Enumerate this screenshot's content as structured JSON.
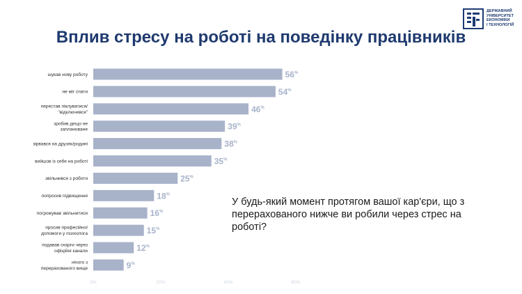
{
  "header": {
    "title": "Вплив стресу на роботі на поведінку працівників",
    "logo_lines": [
      "ДЕРЖАВНИЙ",
      "УНІВЕРСИТЕТ",
      "ЕКОНОМІКИ",
      "І ТЕХНОЛОГІЙ"
    ]
  },
  "question": "У будь-який момент протягом вашої кар'єри, що з перерахованого нижче ви робили через стрес на роботі?",
  "colors": {
    "bar": "#a8b3c9",
    "value": "#a8b3c9",
    "title": "#1f3a6e",
    "axis_tick": "#cfd5e0"
  },
  "chart_data": {
    "type": "bar",
    "orientation": "horizontal",
    "value_suffix": "%",
    "categories": [
      [
        "шукав нову роботу"
      ],
      [
        "не міг спати"
      ],
      [
        "перестав піклуватися/",
        "\"відключився\""
      ],
      [
        "зробив дещо не",
        "заплановане"
      ],
      [
        "зірвався на друзях/родині"
      ],
      [
        "вийшов із себе на роботі"
      ],
      [
        "звільнився з роботи"
      ],
      [
        "попросив підвищення"
      ],
      [
        "погрожував звільнитися"
      ],
      [
        "просив професійної",
        "допомоги у психолога"
      ],
      [
        "подавав скарги через",
        "офіційні канали"
      ],
      [
        "нічого з",
        "перерахованого вище"
      ]
    ],
    "values": [
      56,
      54,
      46,
      39,
      38,
      35,
      25,
      18,
      16,
      15,
      12,
      9
    ],
    "xlim": [
      0,
      60
    ],
    "xticks": [
      0,
      20,
      40,
      60
    ],
    "xtick_labels": [
      "0%",
      "20%",
      "40%",
      "60%"
    ],
    "title": "",
    "xlabel": "",
    "ylabel": ""
  }
}
